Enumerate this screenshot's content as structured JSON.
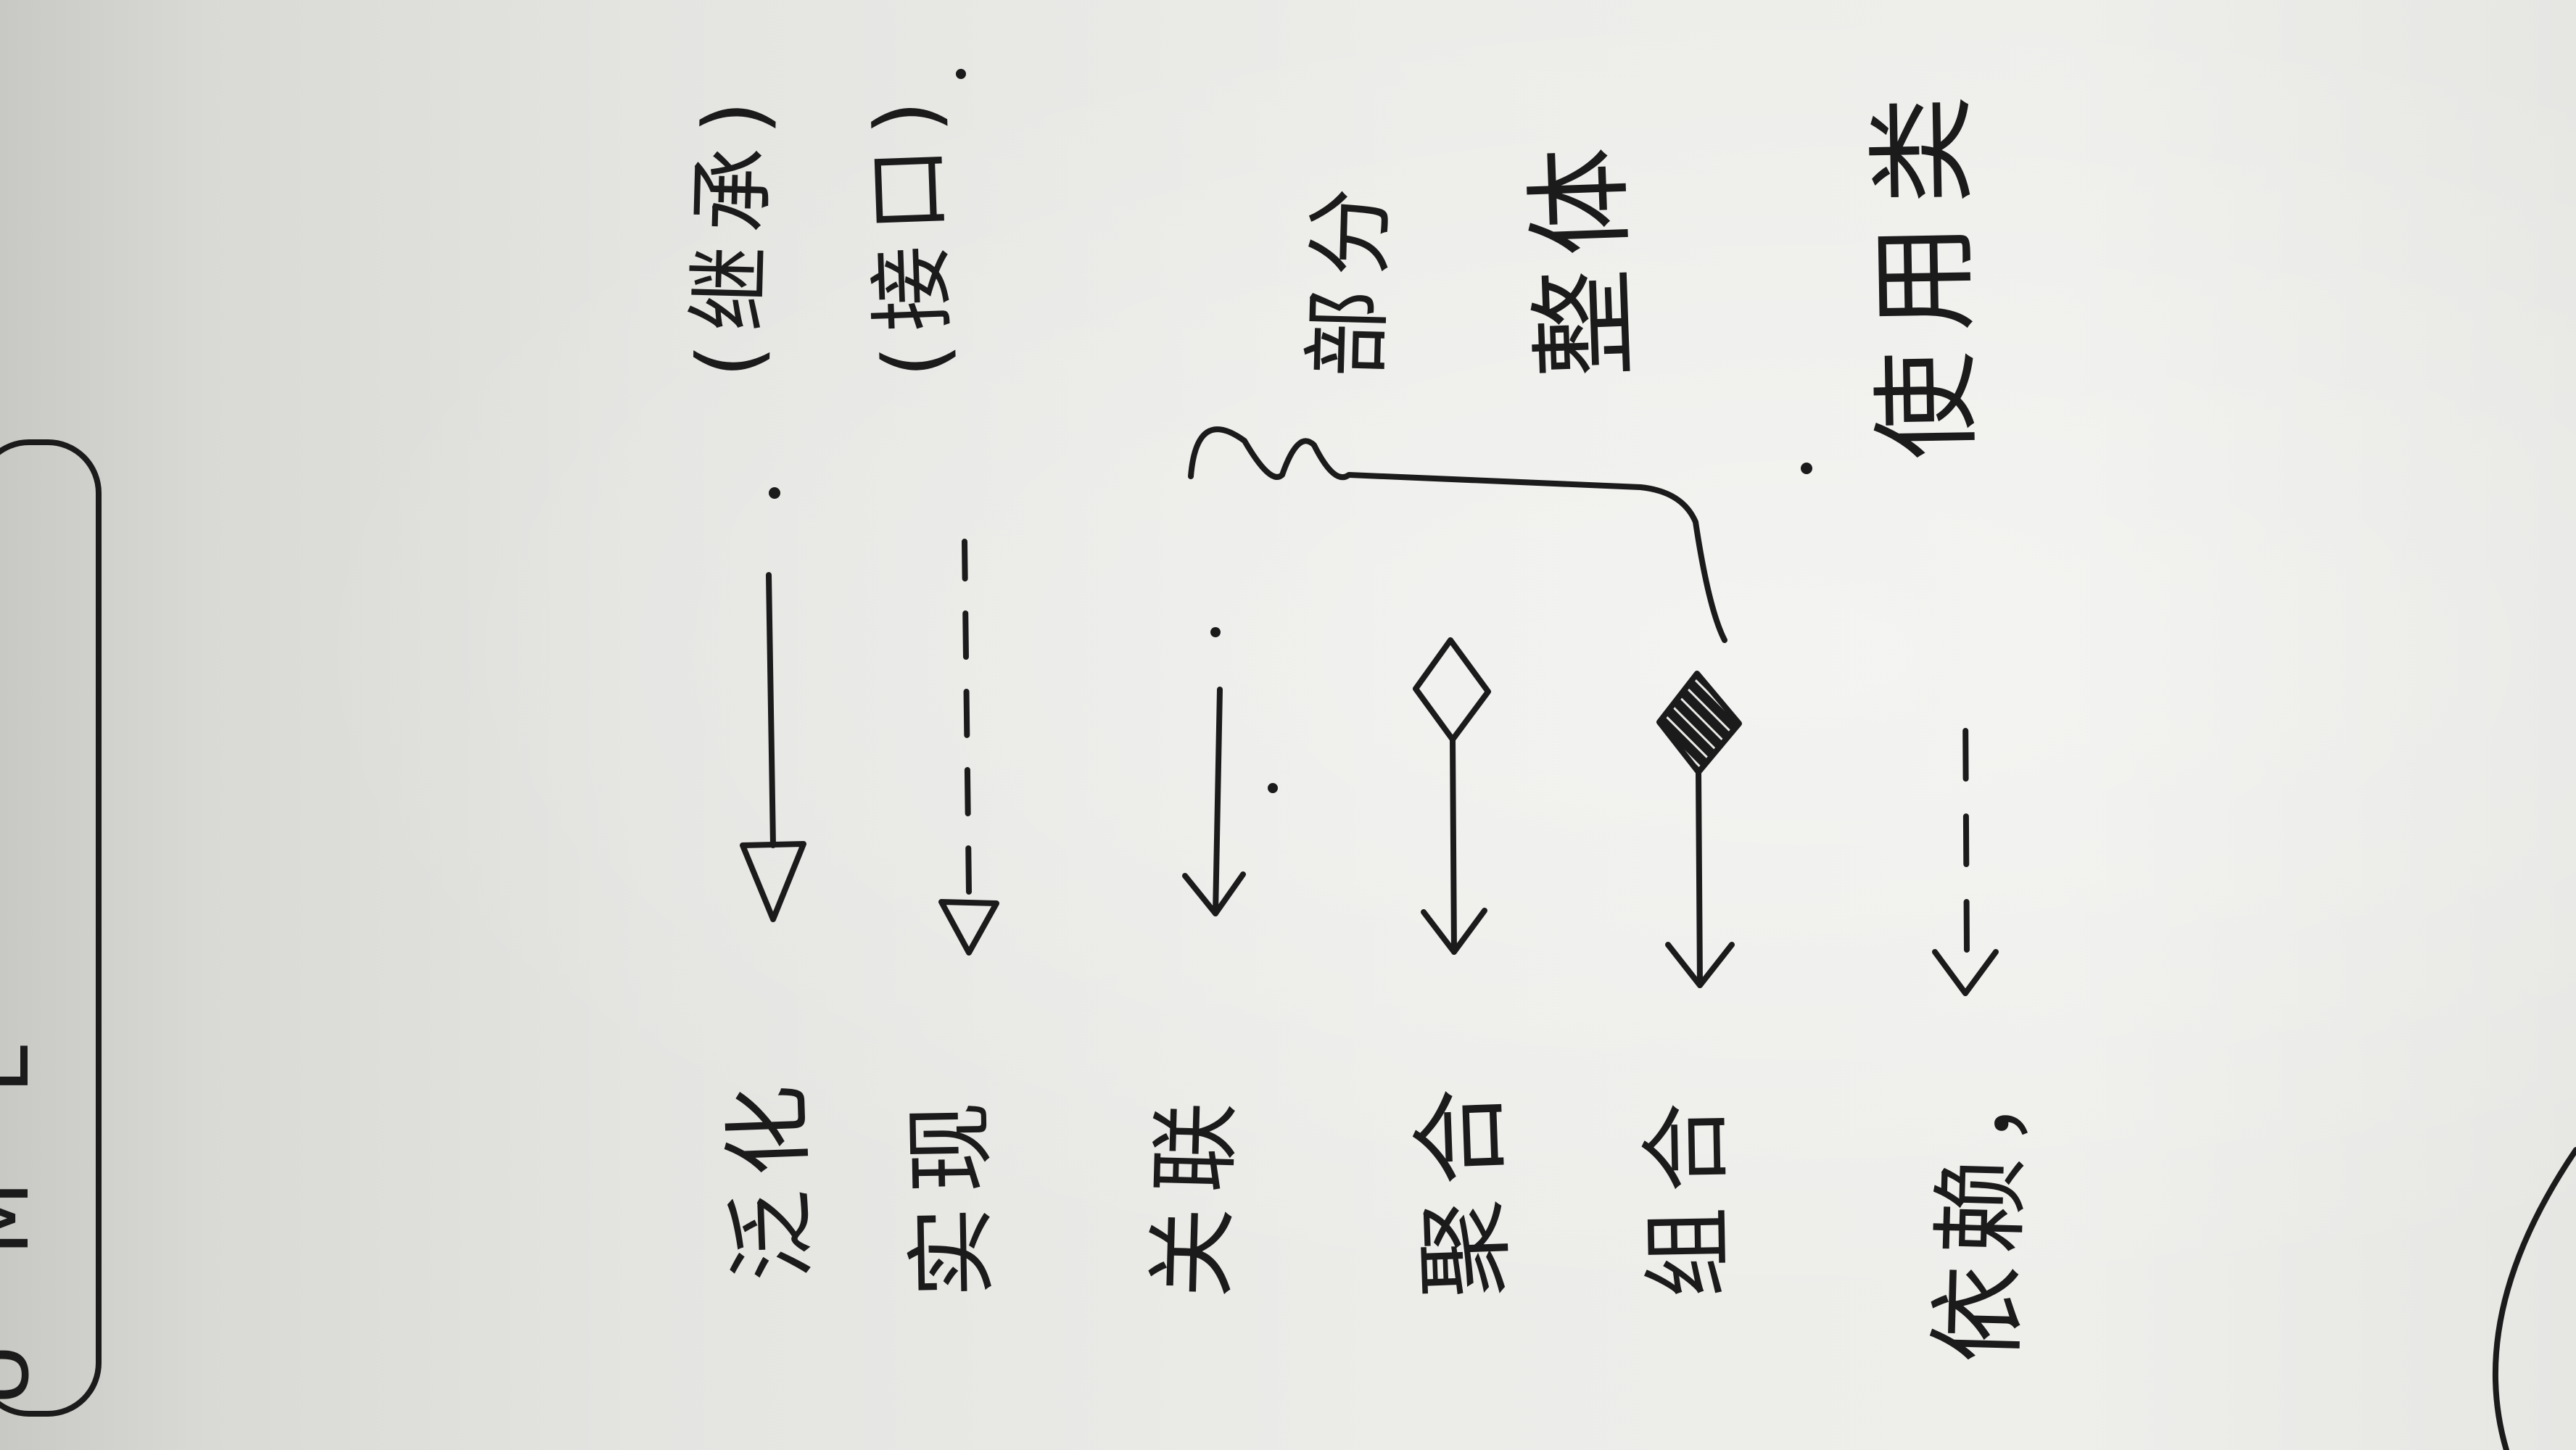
{
  "header": {
    "title": "UML"
  },
  "relations": [
    {
      "label": "泛化",
      "note": "(继承)",
      "connector": {
        "line": "solid",
        "head": "hollow-triangle-icon"
      }
    },
    {
      "label": "实现",
      "note": "(接口)",
      "connector": {
        "line": "dashed",
        "head": "hollow-triangle-icon"
      }
    },
    {
      "label": "关联",
      "connector": {
        "line": "solid",
        "head": "open-arrow-icon"
      }
    },
    {
      "label": "聚合",
      "connector": {
        "line": "solid",
        "head": "open-arrow-icon",
        "tail": "hollow-diamond-icon"
      }
    },
    {
      "label": "组合",
      "connector": {
        "line": "solid",
        "head": "open-arrow-icon",
        "tail": "filled-diamond-icon"
      }
    },
    {
      "label": "依赖，",
      "note": "使用类",
      "connector": {
        "line": "dashed",
        "head": "open-arrow-icon"
      }
    }
  ],
  "group_note": {
    "bracket": "curly-brace-icon",
    "lines": [
      "部分",
      "整体"
    ]
  },
  "colors": {
    "ink": "#1b1b1b",
    "paper": "#ecece9"
  }
}
